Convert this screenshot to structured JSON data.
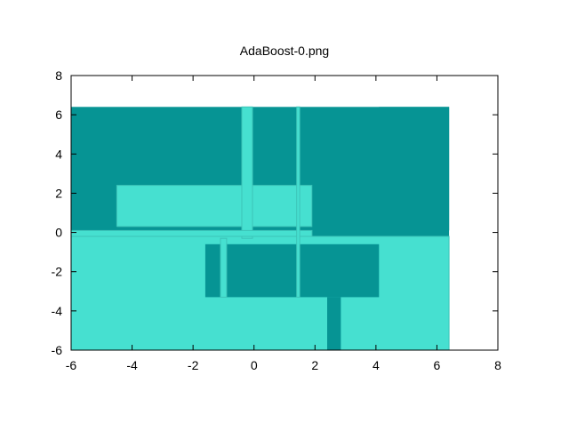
{
  "chart_data": {
    "type": "heatmap",
    "title": "AdaBoost-0.png",
    "xlabel": "",
    "ylabel": "",
    "xlim": [
      -6,
      8
    ],
    "ylim": [
      -6,
      8
    ],
    "xticks": [
      "-6",
      "-4",
      "-2",
      "0",
      "2",
      "4",
      "6",
      "8"
    ],
    "yticks": [
      "-6",
      "-4",
      "-2",
      "0",
      "2",
      "4",
      "6",
      "8"
    ],
    "grid": false,
    "colors": {
      "class_dark": "#069494",
      "class_light": "#46e0d0",
      "border": "#3cc4b8",
      "axis": "#000000",
      "background": "#ffffff"
    },
    "regions": [
      {
        "class": "dark",
        "x": [
          -6.0,
          6.4
        ],
        "y": [
          -6.0,
          6.4
        ]
      },
      {
        "class": "light",
        "x": [
          -6.0,
          6.4
        ],
        "y": [
          -6.0,
          -0.2
        ]
      },
      {
        "class": "dark",
        "x": [
          4.1,
          6.4
        ],
        "y": [
          0.1,
          6.4
        ]
      },
      {
        "class": "dark",
        "x": [
          -1.6,
          4.1
        ],
        "y": [
          -3.3,
          -0.6
        ]
      },
      {
        "class": "light",
        "x": [
          -1.1,
          -0.9
        ],
        "y": [
          -3.3,
          -0.3
        ]
      },
      {
        "class": "dark",
        "x": [
          2.4,
          2.85
        ],
        "y": [
          -6.0,
          -3.3
        ]
      },
      {
        "class": "light",
        "x": [
          -4.5,
          1.9
        ],
        "y": [
          0.3,
          2.4
        ]
      },
      {
        "class": "light",
        "x": [
          -0.4,
          -0.05
        ],
        "y": [
          -0.3,
          6.4
        ]
      },
      {
        "class": "dark",
        "x": [
          -6.0,
          -4.5
        ],
        "y": [
          0.15,
          0.3
        ]
      },
      {
        "class": "light",
        "x": [
          -6.0,
          1.9
        ],
        "y": [
          -0.2,
          0.1
        ]
      },
      {
        "class": "light",
        "x": [
          1.4,
          1.5
        ],
        "y": [
          -3.3,
          6.4
        ]
      }
    ]
  }
}
